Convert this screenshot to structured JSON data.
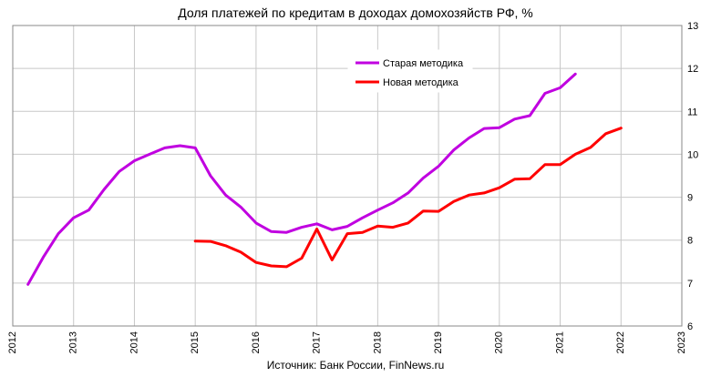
{
  "chart_data": {
    "type": "line",
    "title": "Доля платежей по кредитам в доходах домохозяйств РФ, %",
    "source": "Источник: Банк России, FinNews.ru",
    "xlim": [
      2012,
      2023
    ],
    "ylim": [
      6,
      13
    ],
    "x_ticks": [
      "2012",
      "2013",
      "2014",
      "2015",
      "2016",
      "2017",
      "2018",
      "2019",
      "2020",
      "2021",
      "2022",
      "2023"
    ],
    "y_ticks": [
      "6",
      "7",
      "8",
      "9",
      "10",
      "11",
      "12",
      "13"
    ],
    "grid": true,
    "legend_position": "top-center",
    "series": [
      {
        "name": "Старая методика",
        "color": "#c000e0",
        "x": [
          2012.25,
          2012.5,
          2012.75,
          2013.0,
          2013.25,
          2013.5,
          2013.75,
          2014.0,
          2014.25,
          2014.5,
          2014.75,
          2015.0,
          2015.25,
          2015.5,
          2015.75,
          2016.0,
          2016.25,
          2016.5,
          2016.75,
          2017.0,
          2017.25,
          2017.5,
          2017.75,
          2018.0,
          2018.25,
          2018.5,
          2018.75,
          2019.0,
          2019.25,
          2019.5,
          2019.75,
          2020.0,
          2020.25,
          2020.5,
          2020.75,
          2021.0,
          2021.25
        ],
        "y": [
          6.97,
          7.6,
          8.15,
          8.52,
          8.7,
          9.18,
          9.6,
          9.85,
          10.0,
          10.15,
          10.2,
          10.15,
          9.5,
          9.05,
          8.77,
          8.4,
          8.2,
          8.18,
          8.3,
          8.38,
          8.24,
          8.32,
          8.52,
          8.7,
          8.87,
          9.1,
          9.45,
          9.72,
          10.1,
          10.38,
          10.6,
          10.62,
          10.82,
          10.9,
          11.42,
          11.55,
          11.87
        ]
      },
      {
        "name": "Новая методика",
        "color": "#ff0000",
        "x": [
          2015.0,
          2015.25,
          2015.5,
          2015.75,
          2016.0,
          2016.25,
          2016.5,
          2016.75,
          2017.0,
          2017.25,
          2017.5,
          2017.75,
          2018.0,
          2018.25,
          2018.5,
          2018.75,
          2019.0,
          2019.25,
          2019.5,
          2019.75,
          2020.0,
          2020.25,
          2020.5,
          2020.75,
          2021.0,
          2021.25,
          2021.5,
          2021.75,
          2022.0
        ],
        "y": [
          7.98,
          7.97,
          7.87,
          7.72,
          7.48,
          7.4,
          7.38,
          7.58,
          8.26,
          7.54,
          8.15,
          8.18,
          8.33,
          8.3,
          8.4,
          8.68,
          8.67,
          8.9,
          9.05,
          9.1,
          9.22,
          9.42,
          9.43,
          9.76,
          9.76,
          10.0,
          10.16,
          10.48,
          10.61
        ]
      }
    ]
  }
}
